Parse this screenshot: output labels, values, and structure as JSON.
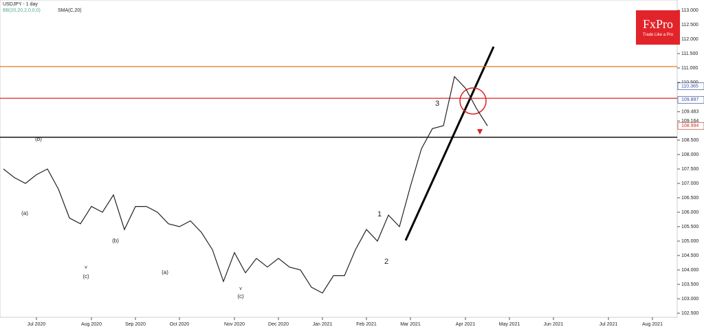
{
  "chart_data": {
    "type": "line",
    "title": "USDJPY - 1 day",
    "indicators": [
      "BB(20,20,2,0,0,0)",
      "SMA(C,20)"
    ],
    "brand": "FxPro",
    "slogan": "Trade Like a Pro",
    "categories": [
      null,
      null,
      null,
      "Jul 2020",
      null,
      null,
      null,
      null,
      "Aug 2020",
      null,
      null,
      null,
      "Sep 2020",
      null,
      null,
      null,
      "Oct 2020",
      null,
      null,
      null,
      null,
      "Nov 2020",
      null,
      null,
      null,
      "Dec 2020",
      null,
      null,
      null,
      "Jan 2021",
      null,
      null,
      null,
      "Feb 2021",
      null,
      null,
      null,
      "Mar 2021",
      null,
      null,
      null,
      null,
      "Apr 2021",
      null,
      null,
      null,
      "May 2021",
      null,
      null,
      null,
      "Jun 2021",
      null,
      null,
      null,
      null,
      "Jul 2021",
      null,
      null,
      null,
      "Aug 2021",
      null,
      null
    ],
    "series": [
      {
        "name": "USDJPY",
        "color": "#222222",
        "values": [
          107.5,
          107.2,
          107.0,
          107.3,
          107.5,
          106.8,
          105.8,
          105.6,
          106.2,
          106.0,
          106.6,
          105.4,
          106.2,
          106.2,
          106.0,
          105.6,
          105.5,
          105.7,
          105.3,
          104.7,
          103.6,
          104.6,
          103.9,
          104.4,
          104.1,
          104.4,
          104.1,
          104.0,
          103.4,
          103.2,
          103.8,
          103.8,
          104.7,
          105.4,
          105.0,
          105.9,
          105.5,
          106.9,
          108.2,
          108.9,
          109.0,
          110.7,
          110.3,
          109.6,
          108.994,
          null,
          null,
          null,
          null,
          null,
          null,
          null,
          null,
          null,
          null,
          null,
          null,
          null,
          null,
          null,
          null,
          null
        ]
      }
    ],
    "ylim": [
      102.357,
      113.357
    ],
    "yticks": [
      {
        "value": 113,
        "label": "113.000"
      },
      {
        "value": 112.5,
        "label": "112.500"
      },
      {
        "value": 112,
        "label": "112.000"
      },
      {
        "value": 111.5,
        "label": "111.500"
      },
      {
        "value": 111,
        "label": "111.000"
      },
      {
        "value": 110.5,
        "label": "110.500"
      },
      {
        "value": 109.483,
        "label": "109.483"
      },
      {
        "value": 109.164,
        "label": "109.164"
      },
      {
        "value": 108.5,
        "label": "108.500"
      },
      {
        "value": 108,
        "label": "108.000"
      },
      {
        "value": 107.5,
        "label": "107.500"
      },
      {
        "value": 107,
        "label": "107.000"
      },
      {
        "value": 106.5,
        "label": "106.500"
      },
      {
        "value": 106,
        "label": "106.000"
      },
      {
        "value": 105.5,
        "label": "105.500"
      },
      {
        "value": 105,
        "label": "105.000"
      },
      {
        "value": 104.5,
        "label": "104.500"
      },
      {
        "value": 104,
        "label": "104.000"
      },
      {
        "value": 103.5,
        "label": "103.500"
      },
      {
        "value": 103,
        "label": "103.000"
      },
      {
        "value": 102.5,
        "label": "102.500"
      }
    ],
    "price_labels": [
      {
        "value": 110.365,
        "label": "110.365",
        "color": "#3a4f9a"
      },
      {
        "value": 109.897,
        "label": "109.897",
        "color": "#3a4f9a"
      },
      {
        "value": 108.994,
        "label": "108.994",
        "color": "#c0392b"
      }
    ],
    "levels": [
      {
        "value": 111.05,
        "color": "#e8781e"
      },
      {
        "value": 109.95,
        "color": "#e02020"
      },
      {
        "value": 108.6,
        "color": "#000000"
      }
    ],
    "annotations": [
      "1",
      "2",
      "3",
      "(a)",
      "(b)",
      "(c)",
      "(a)",
      "(b)",
      "(c)",
      "v",
      "v"
    ],
    "grid": false
  }
}
